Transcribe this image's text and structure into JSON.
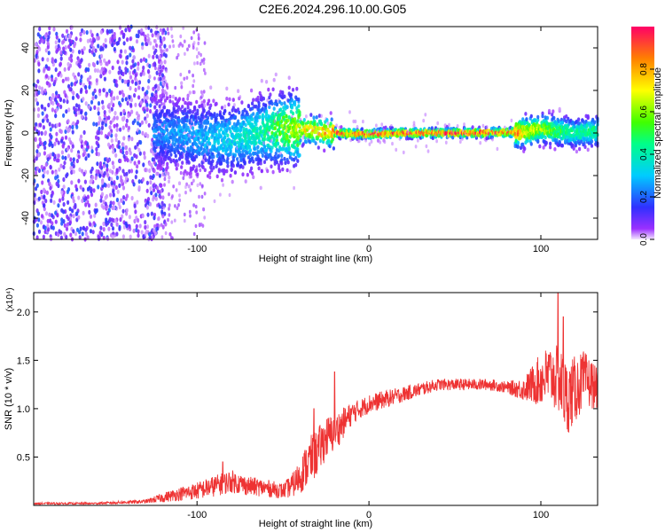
{
  "title": "C2E6.2024.296.10.00.G05",
  "chart_data": [
    {
      "type": "heatmap",
      "xlabel": "Height of straight line (km)",
      "ylabel": "Frequency (Hz)",
      "xlim": [
        -195,
        133
      ],
      "ylim": [
        -50,
        50
      ],
      "xticks": [
        -100,
        0,
        100
      ],
      "yticks": [
        -40,
        -20,
        0,
        20,
        40
      ],
      "colorbar": {
        "label": "Normalized spectral amplitude",
        "range": [
          0.0,
          1.0
        ],
        "ticks": [
          0.0,
          0.2,
          0.4,
          0.6,
          0.8
        ]
      },
      "ridge": {
        "description_points_x": [
          -195,
          -120,
          -100,
          -80,
          -60,
          -50,
          -40,
          -30,
          -20,
          0,
          20,
          60,
          90,
          100,
          110,
          120,
          133
        ],
        "description_points_y": [
          0,
          0,
          -2,
          -3,
          1,
          2,
          2,
          1,
          0,
          -0.5,
          0,
          0,
          0.5,
          2,
          1,
          0,
          1
        ],
        "peak_amplitude_x": [
          -195,
          -125,
          -120,
          -100,
          -80,
          -60,
          -50,
          -40,
          -30,
          -20,
          0,
          20,
          60,
          85,
          95,
          110,
          120,
          133
        ],
        "peak_amplitude_y": [
          0.2,
          0.25,
          0.25,
          0.3,
          0.35,
          0.45,
          0.6,
          0.7,
          0.8,
          0.9,
          0.95,
          0.95,
          0.95,
          0.9,
          0.7,
          0.55,
          0.45,
          0.5
        ]
      }
    },
    {
      "type": "line",
      "xlabel": "Height of straight line (km)",
      "ylabel": "SNR (10 * v/v)",
      "y_multiplier": "(x10⁴)",
      "xlim": [
        -195,
        133
      ],
      "ylim": [
        0,
        2.2
      ],
      "xticks": [
        -100,
        0,
        100
      ],
      "yticks": [
        0.5,
        1.0,
        1.5,
        2.0
      ],
      "color": "#ee3333",
      "series": [
        {
          "x": [
            -195,
            -160,
            -130,
            -120,
            -110,
            -100,
            -90,
            -80,
            -70,
            -60,
            -50,
            -45,
            -40,
            -35,
            -30,
            -25,
            -20,
            -15,
            -10,
            -5,
            0,
            10,
            20,
            30,
            40,
            50,
            60,
            70,
            80,
            90,
            95,
            100,
            105,
            110,
            113,
            115,
            120,
            125,
            130,
            133
          ],
          "y": [
            0.02,
            0.02,
            0.04,
            0.08,
            0.12,
            0.15,
            0.2,
            0.25,
            0.2,
            0.18,
            0.15,
            0.2,
            0.3,
            0.45,
            0.55,
            0.7,
            0.75,
            0.85,
            0.95,
            1.0,
            1.05,
            1.1,
            1.15,
            1.2,
            1.25,
            1.25,
            1.25,
            1.25,
            1.22,
            1.2,
            1.25,
            1.3,
            1.35,
            1.3,
            1.2,
            1.1,
            1.2,
            1.3,
            1.25,
            1.2
          ],
          "noise": [
            0.01,
            0.01,
            0.02,
            0.05,
            0.07,
            0.09,
            0.11,
            0.12,
            0.1,
            0.09,
            0.08,
            0.12,
            0.18,
            0.25,
            0.25,
            0.22,
            0.2,
            0.16,
            0.12,
            0.1,
            0.1,
            0.09,
            0.08,
            0.07,
            0.06,
            0.06,
            0.06,
            0.06,
            0.06,
            0.12,
            0.2,
            0.28,
            0.32,
            0.35,
            0.38,
            0.38,
            0.35,
            0.3,
            0.25,
            0.2
          ],
          "spikes": [
            [
              -20,
              1.38
            ],
            [
              -32,
              1.0
            ],
            [
              -85,
              0.45
            ],
            [
              110,
              2.2
            ],
            [
              113,
              1.95
            ]
          ]
        }
      ]
    }
  ]
}
